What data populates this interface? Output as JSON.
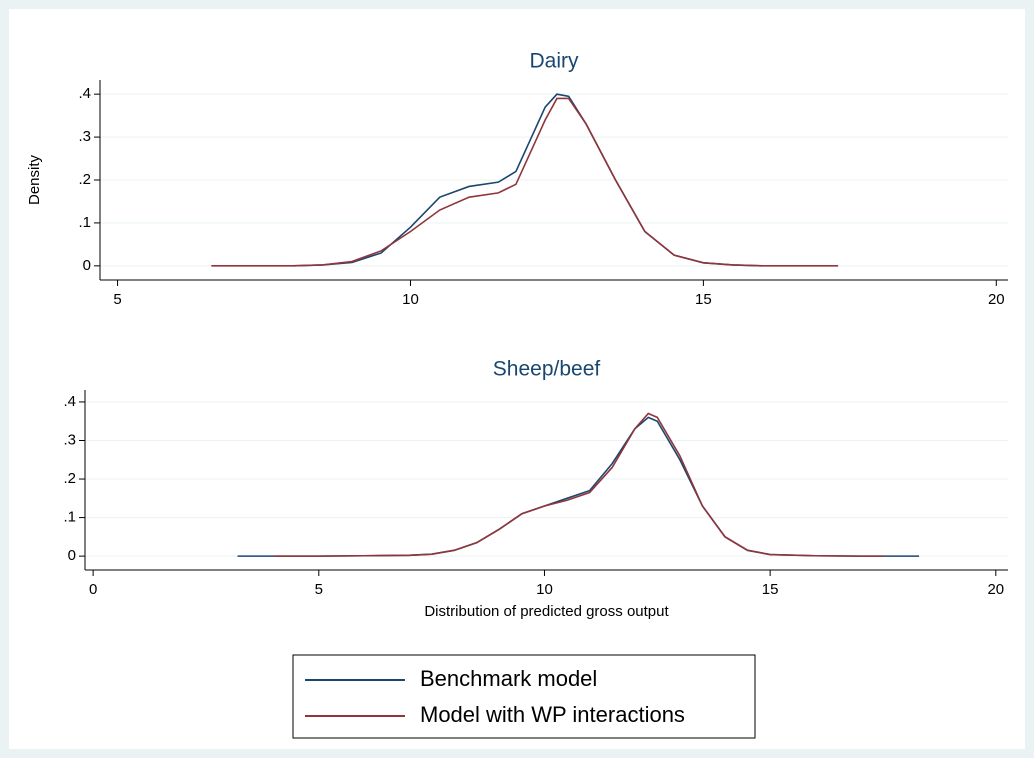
{
  "chart_data": [
    {
      "type": "line",
      "title": "Dairy",
      "y_label": "Density",
      "x": [
        6.6,
        7,
        7.5,
        8,
        8.5,
        9,
        9.5,
        10,
        10.5,
        11,
        11.5,
        11.8,
        12,
        12.3,
        12.5,
        12.7,
        13,
        13.5,
        14,
        14.5,
        15,
        15.5,
        16,
        17.3
      ],
      "series": [
        {
          "name": "Benchmark model",
          "color": "#1a476f",
          "values": [
            null,
            null,
            null,
            0,
            0.002,
            0.008,
            0.03,
            0.09,
            0.16,
            0.185,
            0.195,
            0.22,
            0.28,
            0.37,
            0.4,
            0.395,
            0.33,
            0.2,
            0.08,
            0.025,
            0.007,
            0.002,
            0,
            null
          ]
        },
        {
          "name": "Model with WP interactions",
          "color": "#90353b",
          "values": [
            0,
            0,
            0,
            0,
            0.002,
            0.01,
            0.035,
            0.08,
            0.13,
            0.16,
            0.17,
            0.19,
            0.25,
            0.34,
            0.39,
            0.39,
            0.33,
            0.2,
            0.08,
            0.025,
            0.007,
            0.002,
            0,
            0
          ]
        }
      ],
      "xlim": [
        4.7,
        20.2
      ],
      "xticks": [
        5,
        10,
        15,
        20
      ],
      "ylim": [
        -0.033,
        0.433
      ],
      "yticks": [
        0,
        {
          "value": 0.1,
          "label": ".1"
        },
        {
          "value": 0.2,
          "label": ".2"
        },
        {
          "value": 0.3,
          "label": ".3"
        },
        {
          "value": 0.4,
          "label": ".4"
        }
      ],
      "grid": true
    },
    {
      "type": "line",
      "title": "Sheep/beef",
      "x_label": "Distribution of predicted gross output",
      "x": [
        3.2,
        4,
        5,
        6,
        7,
        7.5,
        8,
        8.5,
        9,
        9.5,
        10,
        10.5,
        11,
        11.5,
        12,
        12.3,
        12.5,
        13,
        13.5,
        14,
        14.5,
        15,
        16,
        17,
        17.5,
        18.3
      ],
      "series": [
        {
          "name": "Benchmark model",
          "color": "#1a476f",
          "values": [
            0,
            0,
            0,
            0.001,
            0.002,
            0.005,
            0.015,
            0.035,
            0.07,
            0.11,
            0.13,
            0.15,
            0.17,
            0.24,
            0.33,
            0.36,
            0.35,
            0.25,
            0.13,
            0.05,
            0.015,
            0.004,
            0.001,
            0,
            0,
            0
          ]
        },
        {
          "name": "Model with WP interactions",
          "color": "#90353b",
          "values": [
            null,
            0,
            0,
            0.001,
            0.002,
            0.005,
            0.015,
            0.035,
            0.07,
            0.11,
            0.13,
            0.145,
            0.165,
            0.23,
            0.33,
            0.37,
            0.36,
            0.26,
            0.13,
            0.05,
            0.015,
            0.004,
            0.001,
            0,
            0,
            null
          ]
        }
      ],
      "xlim": [
        -0.18,
        20.27
      ],
      "xticks": [
        0,
        5,
        10,
        15,
        20
      ],
      "ylim": [
        -0.036,
        0.431
      ],
      "yticks": [
        0,
        {
          "value": 0.1,
          "label": ".1"
        },
        {
          "value": 0.2,
          "label": ".2"
        },
        {
          "value": 0.3,
          "label": ".3"
        },
        {
          "value": 0.4,
          "label": ".4"
        }
      ],
      "grid": true
    }
  ]
}
